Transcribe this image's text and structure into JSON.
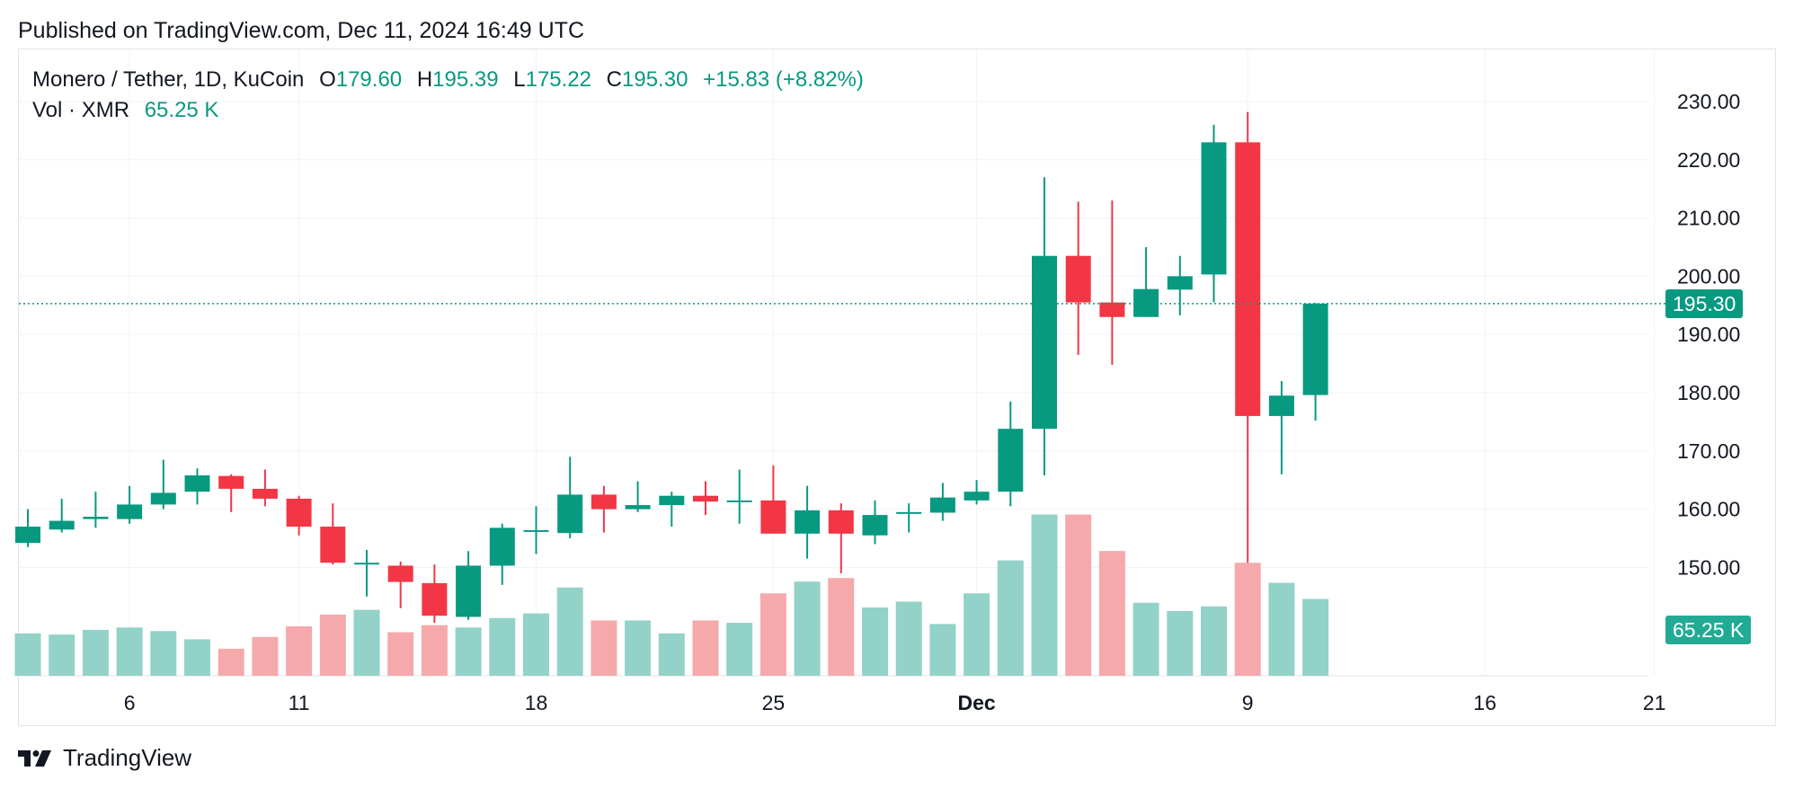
{
  "header": {
    "published": "Published on TradingView.com, Dec 11, 2024 16:49 UTC"
  },
  "legend": {
    "symbol": "Monero / Tether, 1D, KuCoin",
    "open_key": "O",
    "open": "179.60",
    "high_key": "H",
    "high": "195.39",
    "low_key": "L",
    "low": "175.22",
    "close_key": "C",
    "close": "195.30",
    "change": "+15.83 (+8.82%)",
    "vol_label": "Vol · XMR",
    "vol_value": "65.25 K"
  },
  "price_tag": "195.30",
  "volume_tag": "65.25 K",
  "footer": {
    "brand": "TradingView"
  },
  "colors": {
    "up": "#089981",
    "down": "#f23645",
    "up_vol": "#93d2c8",
    "down_vol": "#f5a9ab",
    "grid": "#f0f3fa",
    "text": "#131722"
  },
  "chart_data": {
    "type": "candlestick",
    "title": "Monero / Tether, 1D, KuCoin",
    "ylim": [
      140,
      232
    ],
    "y_ticks": [
      "150.00",
      "160.00",
      "170.00",
      "180.00",
      "190.00",
      "200.00",
      "210.00",
      "220.00",
      "230.00"
    ],
    "x_ticks": [
      {
        "label": "6",
        "index": 3
      },
      {
        "label": "11",
        "index": 8
      },
      {
        "label": "18",
        "index": 15
      },
      {
        "label": "25",
        "index": 22
      },
      {
        "label": "Dec",
        "index": 28
      },
      {
        "label": "9",
        "index": 36
      },
      {
        "label": "16",
        "index": 43
      },
      {
        "label": "21",
        "index": 48
      }
    ],
    "last_price": 195.3,
    "candles": [
      {
        "o": 154.2,
        "h": 160.0,
        "l": 153.5,
        "c": 157.0,
        "v": 36
      },
      {
        "o": 156.5,
        "h": 161.8,
        "l": 156.0,
        "c": 158.0,
        "v": 35
      },
      {
        "o": 158.3,
        "h": 163.0,
        "l": 156.8,
        "c": 158.7,
        "v": 39
      },
      {
        "o": 158.3,
        "h": 164.0,
        "l": 157.5,
        "c": 160.8,
        "v": 41
      },
      {
        "o": 160.8,
        "h": 168.5,
        "l": 160.0,
        "c": 162.8,
        "v": 38
      },
      {
        "o": 163.0,
        "h": 167.0,
        "l": 160.8,
        "c": 165.8,
        "v": 31
      },
      {
        "o": 165.7,
        "h": 166.0,
        "l": 159.5,
        "c": 163.5,
        "v": 23
      },
      {
        "o": 163.5,
        "h": 166.8,
        "l": 160.5,
        "c": 161.8,
        "v": 33
      },
      {
        "o": 161.8,
        "h": 162.3,
        "l": 155.5,
        "c": 157.0,
        "v": 42
      },
      {
        "o": 157.0,
        "h": 161.0,
        "l": 150.5,
        "c": 150.8,
        "v": 52
      },
      {
        "o": 150.8,
        "h": 153.0,
        "l": 145.0,
        "c": 150.8,
        "v": 56
      },
      {
        "o": 150.3,
        "h": 151.0,
        "l": 143.0,
        "c": 147.5,
        "v": 37
      },
      {
        "o": 147.3,
        "h": 150.5,
        "l": 140.5,
        "c": 141.7,
        "v": 43
      },
      {
        "o": 141.5,
        "h": 152.8,
        "l": 141.0,
        "c": 150.3,
        "v": 41
      },
      {
        "o": 150.3,
        "h": 157.5,
        "l": 147.0,
        "c": 156.8,
        "v": 49
      },
      {
        "o": 156.4,
        "h": 160.5,
        "l": 152.3,
        "c": 156.4,
        "v": 53
      },
      {
        "o": 155.9,
        "h": 169.0,
        "l": 155.0,
        "c": 162.5,
        "v": 75
      },
      {
        "o": 162.5,
        "h": 164.0,
        "l": 156.0,
        "c": 160.0,
        "v": 47
      },
      {
        "o": 160.0,
        "h": 164.8,
        "l": 159.5,
        "c": 160.7,
        "v": 47
      },
      {
        "o": 160.7,
        "h": 163.0,
        "l": 157.0,
        "c": 162.3,
        "v": 36
      },
      {
        "o": 162.3,
        "h": 164.8,
        "l": 159.0,
        "c": 161.3,
        "v": 47
      },
      {
        "o": 161.5,
        "h": 166.8,
        "l": 157.5,
        "c": 161.5,
        "v": 45
      },
      {
        "o": 161.5,
        "h": 167.5,
        "l": 156.0,
        "c": 155.8,
        "v": 70
      },
      {
        "o": 155.8,
        "h": 164.0,
        "l": 151.5,
        "c": 159.8,
        "v": 80
      },
      {
        "o": 159.8,
        "h": 161.0,
        "l": 149.0,
        "c": 155.8,
        "v": 83
      },
      {
        "o": 155.5,
        "h": 161.5,
        "l": 154.0,
        "c": 159.0,
        "v": 58
      },
      {
        "o": 159.5,
        "h": 161.0,
        "l": 156.0,
        "c": 159.5,
        "v": 63
      },
      {
        "o": 159.4,
        "h": 164.5,
        "l": 158.0,
        "c": 162.0,
        "v": 44
      },
      {
        "o": 161.5,
        "h": 165.0,
        "l": 160.8,
        "c": 163.0,
        "v": 70
      },
      {
        "o": 163.0,
        "h": 178.5,
        "l": 160.5,
        "c": 173.8,
        "v": 98
      },
      {
        "o": 173.8,
        "h": 217.0,
        "l": 165.8,
        "c": 203.5,
        "v": 137
      },
      {
        "o": 203.5,
        "h": 212.8,
        "l": 186.5,
        "c": 195.5,
        "v": 137
      },
      {
        "o": 195.5,
        "h": 213.0,
        "l": 184.8,
        "c": 193.0,
        "v": 106
      },
      {
        "o": 193.0,
        "h": 205.0,
        "l": 193.0,
        "c": 197.8,
        "v": 62
      },
      {
        "o": 197.7,
        "h": 203.5,
        "l": 193.3,
        "c": 200.0,
        "v": 55
      },
      {
        "o": 200.3,
        "h": 226.0,
        "l": 195.5,
        "c": 223.0,
        "v": 59
      },
      {
        "o": 223.0,
        "h": 228.2,
        "l": 150.8,
        "c": 176.0,
        "v": 96
      },
      {
        "o": 176.0,
        "h": 182.0,
        "l": 166.0,
        "c": 179.5,
        "v": 79
      },
      {
        "o": 179.6,
        "h": 195.4,
        "l": 175.2,
        "c": 195.3,
        "v": 65.25
      }
    ]
  }
}
